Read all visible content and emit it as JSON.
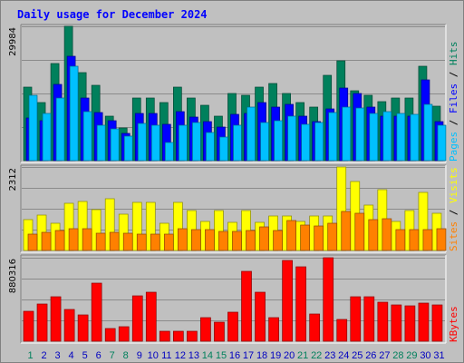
{
  "chart_data": {
    "title": "Daily usage for December 2024",
    "days": [
      "1",
      "2",
      "3",
      "4",
      "5",
      "6",
      "7",
      "8",
      "9",
      "10",
      "11",
      "12",
      "13",
      "14",
      "15",
      "16",
      "17",
      "18",
      "19",
      "20",
      "21",
      "22",
      "23",
      "24",
      "25",
      "26",
      "27",
      "28",
      "29",
      "30",
      "31"
    ],
    "weekend_days": [
      "1",
      "7",
      "8",
      "14",
      "15",
      "21",
      "22",
      "28",
      "29"
    ],
    "colors": {
      "background": "#c0c0c0",
      "hits": "#00805c",
      "files": "#0000ff",
      "pages": "#00c0ff",
      "visits": "#ffff00",
      "sites": "#ff8000",
      "kbytes": "#ff0000",
      "title_text": "#0000ff",
      "weekday_tick": "#0000c0",
      "weekend_tick": "#00805c",
      "separator": "#000000"
    },
    "panels": [
      {
        "type": "bar",
        "ymax_label": "29984",
        "ymax": 29984,
        "side_labels": [
          {
            "text": "Pages",
            "color": "#00c0ff"
          },
          {
            "text": " / ",
            "color": "#000000"
          },
          {
            "text": "Files",
            "color": "#0000ff"
          },
          {
            "text": " / ",
            "color": "#000000"
          },
          {
            "text": "Hits",
            "color": "#00805c"
          }
        ],
        "series": [
          {
            "name": "Hits",
            "color": "#00805c",
            "values": [
              16500,
              12900,
              21700,
              29900,
              19600,
              16800,
              10000,
              7200,
              14000,
              14000,
              12900,
              16500,
              14000,
              12400,
              10000,
              15000,
              14500,
              16500,
              17200,
              15000,
              12900,
              11900,
              19000,
              22300,
              15700,
              14500,
              13200,
              14000,
              14000,
              21100,
              12200
            ]
          },
          {
            "name": "Files",
            "color": "#0000ff",
            "values": [
              9600,
              9000,
              17000,
              23200,
              14000,
              10800,
              9000,
              6000,
              10600,
              10600,
              8200,
              11000,
              9700,
              8800,
              7500,
              10300,
              10600,
              13000,
              12000,
              12500,
              10000,
              8800,
              11500,
              16200,
              15000,
              12000,
              10000,
              10000,
              10000,
              18000,
              8800
            ]
          },
          {
            "name": "Pages",
            "color": "#00c0ff",
            "values": [
              14500,
              10500,
              14000,
              21000,
              11000,
              8000,
              7000,
              5500,
              8300,
              8000,
              4000,
              8000,
              8500,
              6300,
              5200,
              8000,
              12000,
              8500,
              9000,
              10000,
              8200,
              8500,
              10700,
              12000,
              11800,
              10500,
              11000,
              10500,
              10400,
              12500,
              8000
            ]
          }
        ]
      },
      {
        "type": "bar",
        "ymax_label": "2312",
        "ymax": 2312,
        "side_labels": [
          {
            "text": "Sites",
            "color": "#ff8000"
          },
          {
            "text": " / ",
            "color": "#000000"
          },
          {
            "text": "Visits",
            "color": "#ffff00"
          }
        ],
        "series": [
          {
            "name": "Visits",
            "color": "#ffff00",
            "values": [
              850,
              980,
              750,
              1300,
              1350,
              1130,
              1420,
              1000,
              1320,
              1320,
              750,
              1320,
              1100,
              800,
              1100,
              780,
              1110,
              770,
              950,
              950,
              800,
              950,
              950,
              2312,
              1900,
              1250,
              1680,
              800,
              1110,
              1600,
              1020
            ]
          },
          {
            "name": "Sites",
            "color": "#ff8000",
            "values": [
              450,
              500,
              550,
              600,
              600,
              480,
              500,
              480,
              450,
              450,
              450,
              600,
              580,
              580,
              540,
              540,
              550,
              650,
              550,
              820,
              700,
              680,
              750,
              1070,
              1020,
              860,
              880,
              570,
              580,
              570,
              600
            ]
          }
        ]
      },
      {
        "type": "bar",
        "ymax_label": "880316",
        "ymax": 880316,
        "side_labels": [
          {
            "text": "KBytes",
            "color": "#ff0000"
          }
        ],
        "series": [
          {
            "name": "KBytes",
            "color": "#ff0000",
            "values": [
              312000,
              390000,
              465000,
              335000,
              282000,
              610000,
              130000,
              153000,
              483000,
              515000,
              110000,
              110000,
              110000,
              250000,
              205000,
              305000,
              737000,
              515000,
              252000,
              848000,
              789000,
              286000,
              880316,
              232000,
              470000,
              465000,
              410000,
              380000,
              372000,
              405000,
              385000
            ]
          }
        ]
      }
    ]
  }
}
